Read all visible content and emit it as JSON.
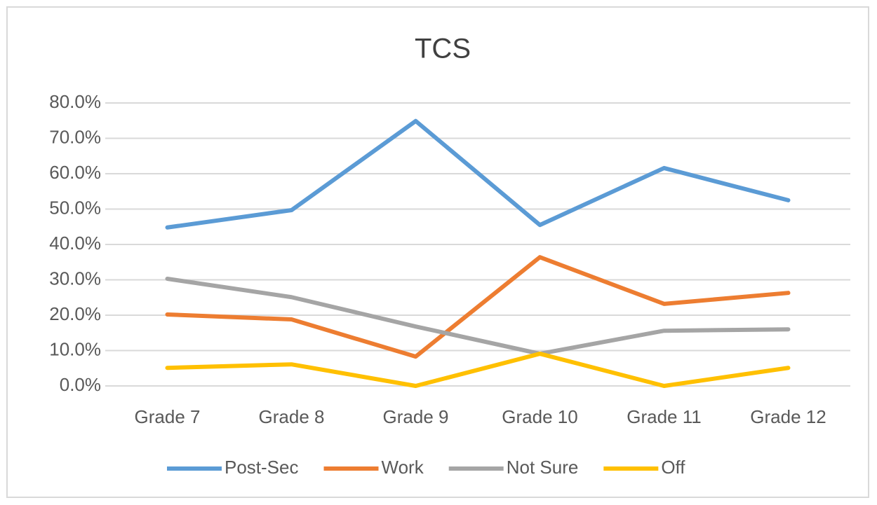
{
  "chart_data": {
    "type": "line",
    "title": "TCS",
    "categories": [
      "Grade 7",
      "Grade 8",
      "Grade 9",
      "Grade 10",
      "Grade 11",
      "Grade 12"
    ],
    "series": [
      {
        "name": "Post-Sec",
        "color": "#5b9bd5",
        "values": [
          44.8,
          49.7,
          74.9,
          45.5,
          61.6,
          52.5
        ]
      },
      {
        "name": "Work",
        "color": "#ed7d31",
        "values": [
          20.2,
          18.8,
          8.3,
          36.4,
          23.2,
          26.3
        ]
      },
      {
        "name": "Not Sure",
        "color": "#a5a5a5",
        "values": [
          30.3,
          25.1,
          16.8,
          9.1,
          15.6,
          16.0
        ]
      },
      {
        "name": "Off",
        "color": "#ffc000",
        "values": [
          5.1,
          6.1,
          0,
          9.1,
          0,
          5.1
        ]
      }
    ],
    "ylim": [
      0,
      80
    ],
    "yticks": [
      {
        "value": 0,
        "label": "0.0%"
      },
      {
        "value": 10,
        "label": "10.0%"
      },
      {
        "value": 20,
        "label": "20.0%"
      },
      {
        "value": 30,
        "label": "30.0%"
      },
      {
        "value": 40,
        "label": "40.0%"
      },
      {
        "value": 50,
        "label": "50.0%"
      },
      {
        "value": 60,
        "label": "60.0%"
      },
      {
        "value": 70,
        "label": "70.0%"
      },
      {
        "value": 80,
        "label": "80.0%"
      }
    ],
    "grid": true,
    "legend": "bottom"
  }
}
